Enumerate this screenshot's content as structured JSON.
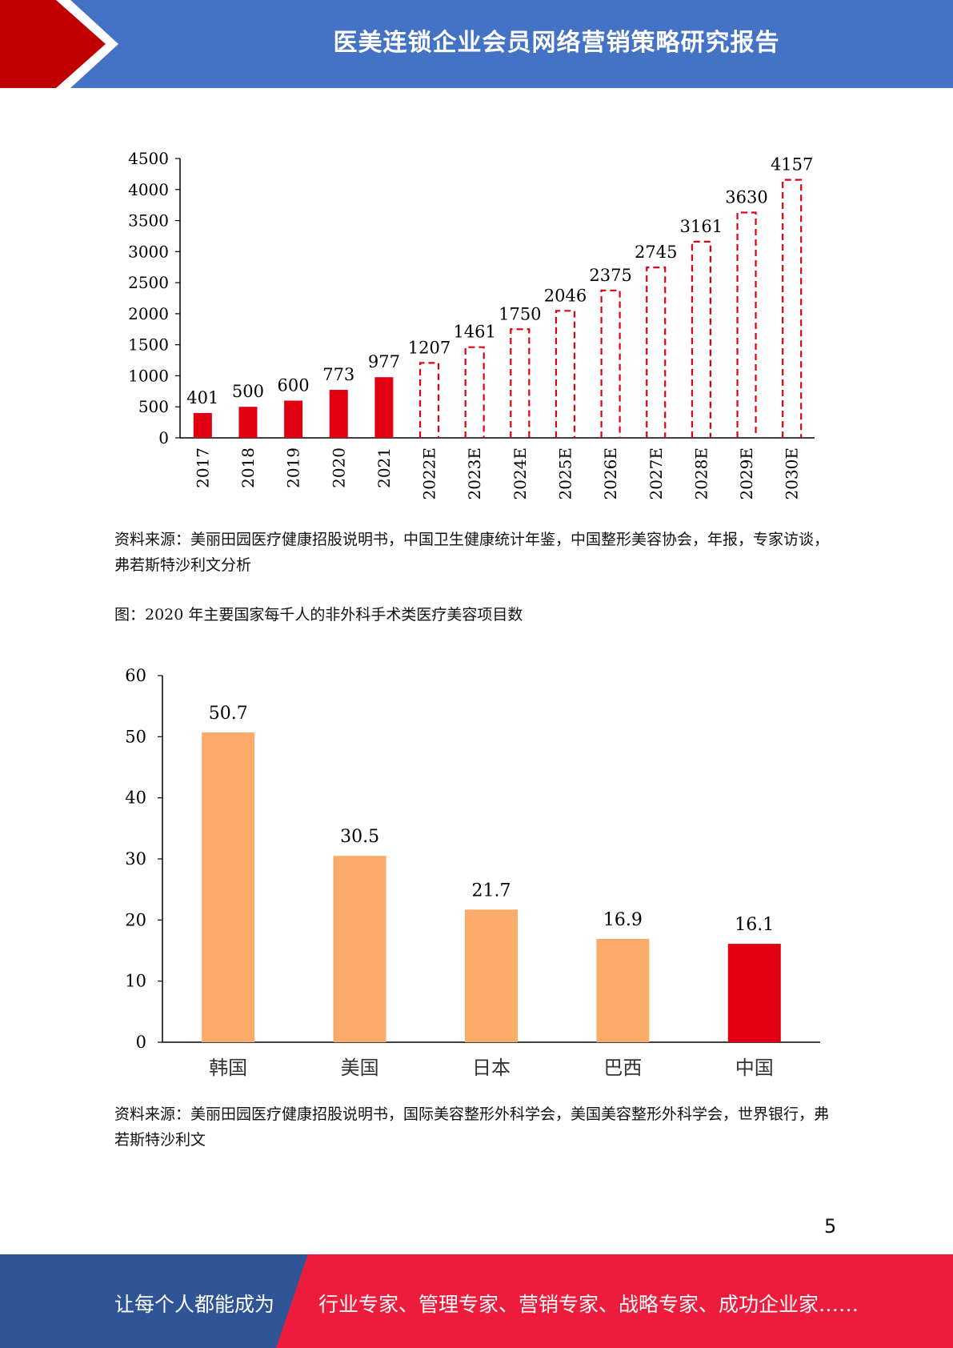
{
  "header": {
    "title": "医美连锁企业会员网络营销策略研究报告"
  },
  "chart_data": [
    {
      "type": "bar",
      "categories": [
        "2017",
        "2018",
        "2019",
        "2020",
        "2021",
        "2022E",
        "2023E",
        "2024E",
        "2025E",
        "2026E",
        "2027E",
        "2028E",
        "2029E",
        "2030E"
      ],
      "values": [
        401,
        500,
        600,
        773,
        977,
        1207,
        1461,
        1750,
        2046,
        2375,
        2745,
        3161,
        3630,
        4157
      ],
      "estimated": [
        false,
        false,
        false,
        false,
        false,
        true,
        true,
        true,
        true,
        true,
        true,
        true,
        true,
        true
      ],
      "yticks": [
        0,
        500,
        1000,
        1500,
        2000,
        2500,
        3000,
        3500,
        4000,
        4500
      ],
      "ylim": [
        0,
        4500
      ],
      "colors": {
        "actual": "#e00012",
        "estimate_outline": "#e00012"
      },
      "grid": false,
      "legend": "none"
    },
    {
      "type": "bar",
      "categories": [
        "韩国",
        "美国",
        "日本",
        "巴西",
        "中国"
      ],
      "values": [
        50.7,
        30.5,
        21.7,
        16.9,
        16.1
      ],
      "bar_colors": [
        "#fbab69",
        "#fbab69",
        "#fbab69",
        "#fbab69",
        "#e00012"
      ],
      "yticks": [
        0,
        10,
        20,
        30,
        40,
        50,
        60
      ],
      "ylim": [
        0,
        60
      ],
      "grid": false,
      "legend": "none"
    }
  ],
  "sources": {
    "chart1": "资料来源：美丽田园医疗健康招股说明书，中国卫生健康统计年鉴，中国整形美容协会，年报，专家访谈，弗若斯特沙利文分析",
    "chart2_caption": "图：2020 年主要国家每千人的非外科手术类医疗美容项目数",
    "chart2": "资料来源：美丽田园医疗健康招股说明书，国际美容整形外科学会，美国美容整形外科学会，世界银行，弗若斯特沙利文"
  },
  "page_number": "5",
  "footer": {
    "left": "让每个人都能成为",
    "right": "行业专家、管理专家、营销专家、战略专家、成功企业家……"
  },
  "colors": {
    "header_blue": "#4472c4",
    "header_red": "#c00000",
    "footer_blue": "#2f5597",
    "footer_red": "#ee1c3c"
  }
}
